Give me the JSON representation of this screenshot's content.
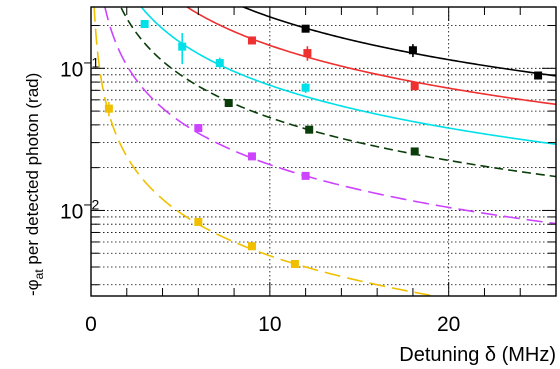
{
  "chart_data": {
    "type": "scatter",
    "title": "",
    "xlabel": "Detuning δ (MHz)",
    "ylabel_main": "-φ",
    "ylabel_sub": "at",
    "ylabel_rest": " per detected photon (rad)",
    "xlim": [
      0,
      26
    ],
    "ylim": [
      0.0025,
      0.27
    ],
    "y_scale": "log",
    "grid": "dotted",
    "legend": "none",
    "x_ticks": [
      {
        "value": 0,
        "label": "0"
      },
      {
        "value": 10,
        "label": "10"
      },
      {
        "value": 20,
        "label": "20"
      }
    ],
    "y_ticks": [
      {
        "value": 0.01,
        "base": "10",
        "exp": "−2"
      },
      {
        "value": 0.1,
        "base": "10",
        "exp": "−1"
      }
    ],
    "series": [
      {
        "color": "#000000",
        "fit_style": "solid",
        "fit_amplitude": 2.3,
        "points": [
          {
            "x": 12.0,
            "y": 0.19,
            "err": 0.01
          },
          {
            "x": 18.0,
            "y": 0.134,
            "err": 0.014
          },
          {
            "x": 25.0,
            "y": 0.089,
            "err": 0.004
          }
        ]
      },
      {
        "color": "#ee3030",
        "fit_style": "solid",
        "fit_amplitude": 1.45,
        "points": [
          {
            "x": 9.0,
            "y": 0.157,
            "err": 0.008
          },
          {
            "x": 12.1,
            "y": 0.128,
            "err": 0.015
          },
          {
            "x": 18.1,
            "y": 0.075,
            "err": 0.005
          }
        ]
      },
      {
        "color": "#00e0e8",
        "fit_style": "solid",
        "fit_amplitude": 0.76,
        "points": [
          {
            "x": 3.0,
            "y": 0.205,
            "err": 0.012
          },
          {
            "x": 5.1,
            "y": 0.142,
            "err": 0.035
          },
          {
            "x": 7.2,
            "y": 0.109,
            "err": 0.01
          },
          {
            "x": 12.0,
            "y": 0.073,
            "err": 0.006
          }
        ]
      },
      {
        "color": "#0a3d0a",
        "fit_style": "dashed",
        "fit_amplitude": 0.45,
        "points": [
          {
            "x": 7.7,
            "y": 0.057,
            "err": 0.003
          },
          {
            "x": 12.2,
            "y": 0.037,
            "err": 0.002
          },
          {
            "x": 18.1,
            "y": 0.026,
            "err": 0.0015
          }
        ]
      },
      {
        "color": "#cc44ff",
        "fit_style": "longdash",
        "fit_amplitude": 0.21,
        "points": [
          {
            "x": 6.0,
            "y": 0.038,
            "err": 0.002
          },
          {
            "x": 9.0,
            "y": 0.024,
            "err": 0.0013
          },
          {
            "x": 12.0,
            "y": 0.0175,
            "err": 0.001
          }
        ]
      },
      {
        "color": "#f0c000",
        "fit_style": "longdash",
        "fit_amplitude": 0.048,
        "points": [
          {
            "x": 1.0,
            "y": 0.052,
            "err": 0.006
          },
          {
            "x": 6.0,
            "y": 0.0083,
            "err": 0.0004
          },
          {
            "x": 9.0,
            "y": 0.0056,
            "err": 0.0003
          },
          {
            "x": 11.4,
            "y": 0.0042,
            "err": 0.0002
          }
        ]
      }
    ]
  }
}
